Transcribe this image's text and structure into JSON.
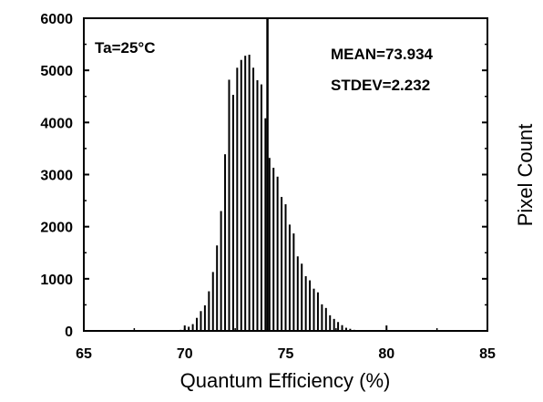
{
  "chart_data": {
    "type": "bar",
    "title": "",
    "xlabel": "Quantum Efficiency (%)",
    "ylabel": "Pixel Count",
    "xlim": [
      65,
      85
    ],
    "ylim": [
      0,
      6000
    ],
    "x_ticks": [
      "65",
      "70",
      "75",
      "80",
      "85"
    ],
    "y_ticks": [
      "0",
      "1000",
      "2000",
      "3000",
      "4000",
      "5000",
      "6000"
    ],
    "grid": false,
    "annotations": {
      "temperature": "Ta=25°C",
      "mean": "MEAN=73.934",
      "stdev": "STDEV=2.232"
    },
    "mean_marker_x": 74.1,
    "bin_centers": [
      69.5,
      69.8,
      70.0,
      70.2,
      70.4,
      70.6,
      70.8,
      71.0,
      71.2,
      71.4,
      71.6,
      71.8,
      72.0,
      72.2,
      72.4,
      72.6,
      72.8,
      73.0,
      73.2,
      73.4,
      73.6,
      73.8,
      74.0,
      74.2,
      74.4,
      74.6,
      74.8,
      75.0,
      75.2,
      75.4,
      75.6,
      75.8,
      76.0,
      76.2,
      76.4,
      76.6,
      76.8,
      77.0,
      77.2,
      77.4,
      77.6,
      77.8,
      78.0,
      78.2,
      78.4,
      78.6
    ],
    "counts": [
      10,
      20,
      40,
      80,
      130,
      250,
      380,
      490,
      760,
      1130,
      1640,
      2300,
      3390,
      4820,
      4530,
      5050,
      5200,
      5280,
      5300,
      5050,
      4810,
      4730,
      4080,
      3320,
      3130,
      2960,
      2570,
      2430,
      2040,
      1870,
      1430,
      1290,
      1050,
      970,
      810,
      740,
      510,
      440,
      300,
      230,
      170,
      110,
      60,
      40,
      20,
      10
    ]
  }
}
